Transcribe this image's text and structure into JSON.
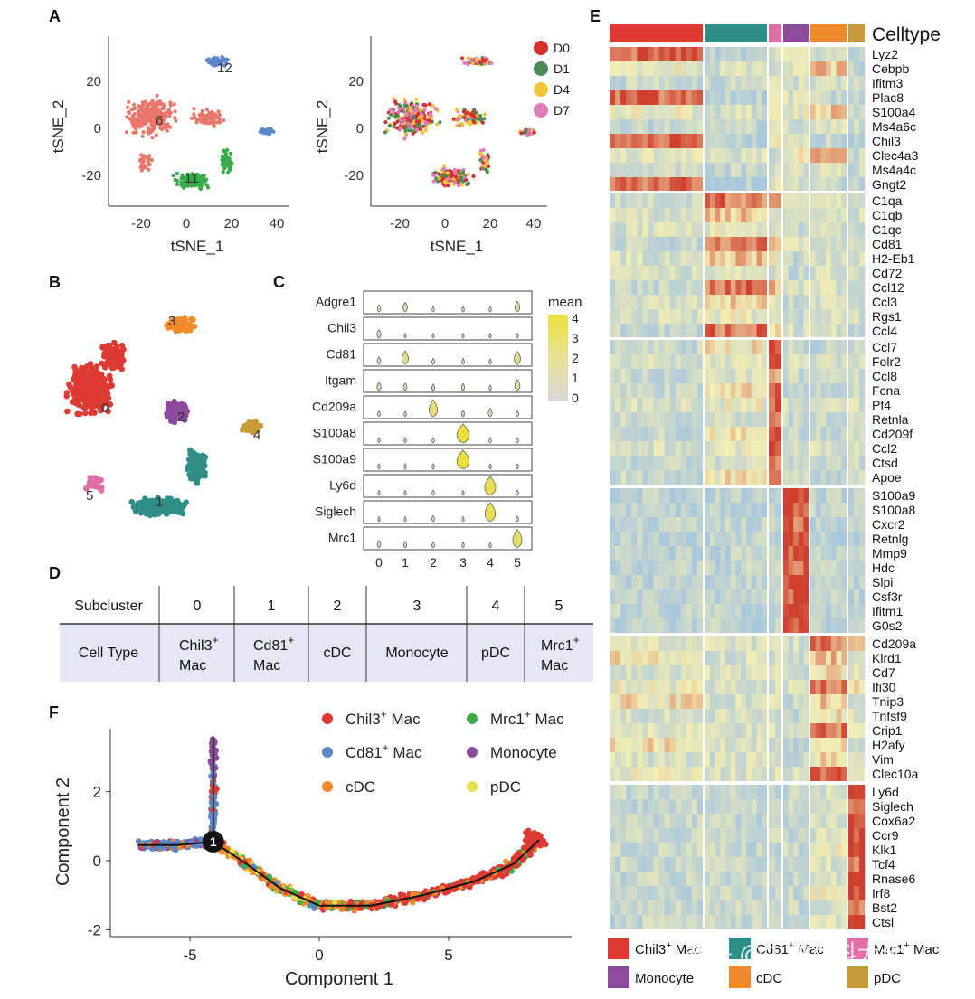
{
  "panels": {
    "A": "A",
    "B": "B",
    "C": "C",
    "D": "D",
    "E": "E",
    "F": "F"
  },
  "colors": {
    "c0": "#de3a33",
    "c1": "#2e8f88",
    "c2": "#8b4b9c",
    "c3": "#ef8b2c",
    "c4": "#c79b3a",
    "c5": "#e06fa8",
    "salmon": "#e9766a",
    "green": "#3aab4a",
    "blue": "#5a87c8",
    "D0": "#d4312f",
    "D1": "#4a8a55",
    "D4": "#f0c53a",
    "D7": "#e07ab8",
    "heat_hi": "#d0402e",
    "heat_mid": "#f3eeb4",
    "heat_lo": "#aac8dd"
  },
  "panelA": {
    "xlabel": "tSNE_1",
    "ylabel": "tSNE_2",
    "xticks": [
      "-20",
      "0",
      "20",
      "40"
    ],
    "yticks": [
      "20",
      "0",
      "-20"
    ],
    "cluster_labels": [
      "12",
      "6",
      "11"
    ],
    "legend": [
      {
        "key": "D0",
        "label": "D0"
      },
      {
        "key": "D1",
        "label": "D1"
      },
      {
        "key": "D4",
        "label": "D4"
      },
      {
        "key": "D7",
        "label": "D7"
      }
    ]
  },
  "panelB": {
    "cluster_labels": [
      "0",
      "1",
      "2",
      "3",
      "4",
      "5"
    ]
  },
  "panelC": {
    "genes": [
      "Adgre1",
      "Chil3",
      "Cd81",
      "Itgam",
      "Cd209a",
      "S100a8",
      "S100a9",
      "Ly6d",
      "Siglech",
      "Mrc1"
    ],
    "xticks": [
      "0",
      "1",
      "2",
      "3",
      "4",
      "5"
    ],
    "legend_title": "mean",
    "legend_ticks": [
      "4",
      "3",
      "2",
      "1",
      "0"
    ]
  },
  "panelD": {
    "row1_header": "Subcluster",
    "row2_header": "Cell Type",
    "subclusters": [
      "0",
      "1",
      "2",
      "3",
      "4",
      "5"
    ],
    "celltypes": [
      {
        "l1": "Chil3",
        "sup": "+",
        "l2": "Mac"
      },
      {
        "l1": "Cd81",
        "sup": "+",
        "l2": "Mac"
      },
      {
        "l1": "cDC",
        "sup": "",
        "l2": ""
      },
      {
        "l1": "Monocyte",
        "sup": "",
        "l2": ""
      },
      {
        "l1": "pDC",
        "sup": "",
        "l2": ""
      },
      {
        "l1": "Mrc1",
        "sup": "+",
        "l2": "Mac"
      }
    ]
  },
  "panelE": {
    "title": "Celltype",
    "gene_groups": [
      [
        "Lyz2",
        "Cebpb",
        "Ifitm3",
        "Plac8",
        "S100a4",
        "Ms4a6c",
        "Chil3",
        "Clec4a3",
        "Ms4a4c",
        "Gngt2"
      ],
      [
        "C1qa",
        "C1qb",
        "C1qc",
        "Cd81",
        "H2-Eb1",
        "Cd72",
        "Ccl12",
        "Ccl3",
        "Rgs1",
        "Ccl4"
      ],
      [
        "Ccl7",
        "Folr2",
        "Ccl8",
        "Fcna",
        "Pf4",
        "Retnla",
        "Cd209f",
        "Ccl2",
        "Ctsd",
        "Apoe"
      ],
      [
        "S100a9",
        "S100a8",
        "Cxcr2",
        "Retnlg",
        "Mmp9",
        "Hdc",
        "Slpi",
        "Csf3r",
        "Ifitm1",
        "G0s2"
      ],
      [
        "Cd209a",
        "Klrd1",
        "Cd7",
        "Ifi30",
        "Tnip3",
        "Tnfsf9",
        "Crip1",
        "H2afy",
        "Vim",
        "Clec10a"
      ],
      [
        "Ly6d",
        "Siglech",
        "Cox6a2",
        "Ccr9",
        "Klk1",
        "Tcf4",
        "Rnase6",
        "Irf8",
        "Bst2",
        "Ctsl"
      ]
    ],
    "legend": [
      {
        "key": "c0",
        "label": "Chil3",
        "sup": "+",
        "tail": " Mac"
      },
      {
        "key": "c1",
        "label": "Cd81",
        "sup": "+",
        "tail": " Mac"
      },
      {
        "key": "c5",
        "label": "Mrc1",
        "sup": "+",
        "tail": " Mac"
      },
      {
        "key": "c2",
        "label": "Monocyte",
        "sup": "",
        "tail": ""
      },
      {
        "key": "c3",
        "label": "cDC",
        "sup": "",
        "tail": ""
      },
      {
        "key": "c4",
        "label": "pDC",
        "sup": "",
        "tail": ""
      }
    ],
    "watermark": "知乎 @生物百科大全"
  },
  "chart_data": [
    {
      "type": "scatter",
      "panel": "F",
      "xlabel": "Component 1",
      "ylabel": "Component 2",
      "xlim": [
        -8,
        9.5
      ],
      "ylim": [
        -2.2,
        3.8
      ],
      "xticks": [
        "-5",
        "0",
        "5"
      ],
      "yticks": [
        "2",
        "0",
        "-2"
      ],
      "branch_point": "1",
      "legend": [
        {
          "key": "c0",
          "label": "Chil3",
          "sup": "+",
          "tail": " Mac"
        },
        {
          "key": "green",
          "label": "Mrc1",
          "sup": "+",
          "tail": " Mac"
        },
        {
          "key": "blue",
          "label": "Cd81",
          "sup": "+",
          "tail": " Mac"
        },
        {
          "key": "c2",
          "label": "Monocyte",
          "sup": "",
          "tail": ""
        },
        {
          "key": "c3",
          "label": "cDC",
          "sup": "",
          "tail": ""
        },
        {
          "key": "pdc",
          "label": "pDC",
          "sup": "",
          "tail": ""
        }
      ],
      "trajectory": [
        [
          -7,
          0.45
        ],
        [
          -5.5,
          0.45
        ],
        [
          -4.1,
          0.55
        ],
        [
          -2.8,
          -0.1
        ],
        [
          -1.5,
          -0.8
        ],
        [
          0,
          -1.3
        ],
        [
          2,
          -1.3
        ],
        [
          4,
          -1.0
        ],
        [
          6,
          -0.6
        ],
        [
          7.5,
          -0.1
        ],
        [
          8.5,
          0.6
        ]
      ]
    },
    {
      "type": "violin",
      "panel": "C",
      "genes": [
        "Adgre1",
        "Chil3",
        "Cd81",
        "Itgam",
        "Cd209a",
        "S100a8",
        "S100a9",
        "Ly6d",
        "Siglech",
        "Mrc1"
      ],
      "clusters": [
        "0",
        "1",
        "2",
        "3",
        "4",
        "5"
      ],
      "mean": [
        [
          0.5,
          1.0,
          0.2,
          0.2,
          0.2,
          1.2
        ],
        [
          0.8,
          0.1,
          0.1,
          0.1,
          0.1,
          0.1
        ],
        [
          0.6,
          1.8,
          0.3,
          0.3,
          0.2,
          1.7
        ],
        [
          0.8,
          0.6,
          0.4,
          0.5,
          0.2,
          1.3
        ],
        [
          0.3,
          0.2,
          2.5,
          0.4,
          0.8,
          0.3
        ],
        [
          0.2,
          0.2,
          0.2,
          4.0,
          0.2,
          0.2
        ],
        [
          0.2,
          0.2,
          0.2,
          4.0,
          0.2,
          0.2
        ],
        [
          0.1,
          0.1,
          0.2,
          0.1,
          3.5,
          0.2
        ],
        [
          0.1,
          0.1,
          0.3,
          0.1,
          3.3,
          0.2
        ],
        [
          0.6,
          0.4,
          0.3,
          0.2,
          0.2,
          2.8
        ]
      ]
    }
  ]
}
